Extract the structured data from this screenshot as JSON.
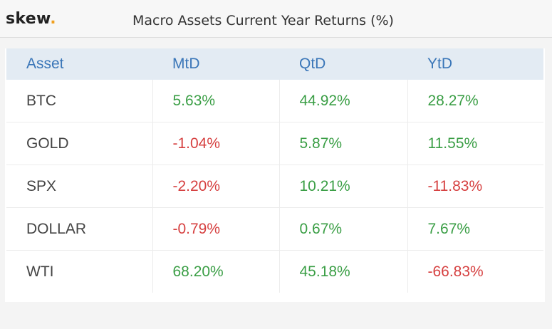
{
  "header": {
    "logo_text": "skew",
    "logo_dot": ".",
    "title": "Macro Assets Current Year Returns (%)"
  },
  "colors": {
    "positive": "#3a9e45",
    "negative": "#d64040",
    "header_text": "#3a76b8",
    "header_bg": "#e3ebf3",
    "logo_dot": "#f0a020"
  },
  "table": {
    "columns": [
      "Asset",
      "MtD",
      "QtD",
      "YtD"
    ],
    "rows": [
      {
        "asset": "BTC",
        "mtd": "5.63%",
        "qtd": "44.92%",
        "ytd": "28.27%"
      },
      {
        "asset": "GOLD",
        "mtd": "-1.04%",
        "qtd": "5.87%",
        "ytd": "11.55%"
      },
      {
        "asset": "SPX",
        "mtd": "-2.20%",
        "qtd": "10.21%",
        "ytd": "-11.83%"
      },
      {
        "asset": "DOLLAR",
        "mtd": "-0.79%",
        "qtd": "0.67%",
        "ytd": "7.67%"
      },
      {
        "asset": "WTI",
        "mtd": "68.20%",
        "qtd": "45.18%",
        "ytd": "-66.83%"
      }
    ]
  }
}
